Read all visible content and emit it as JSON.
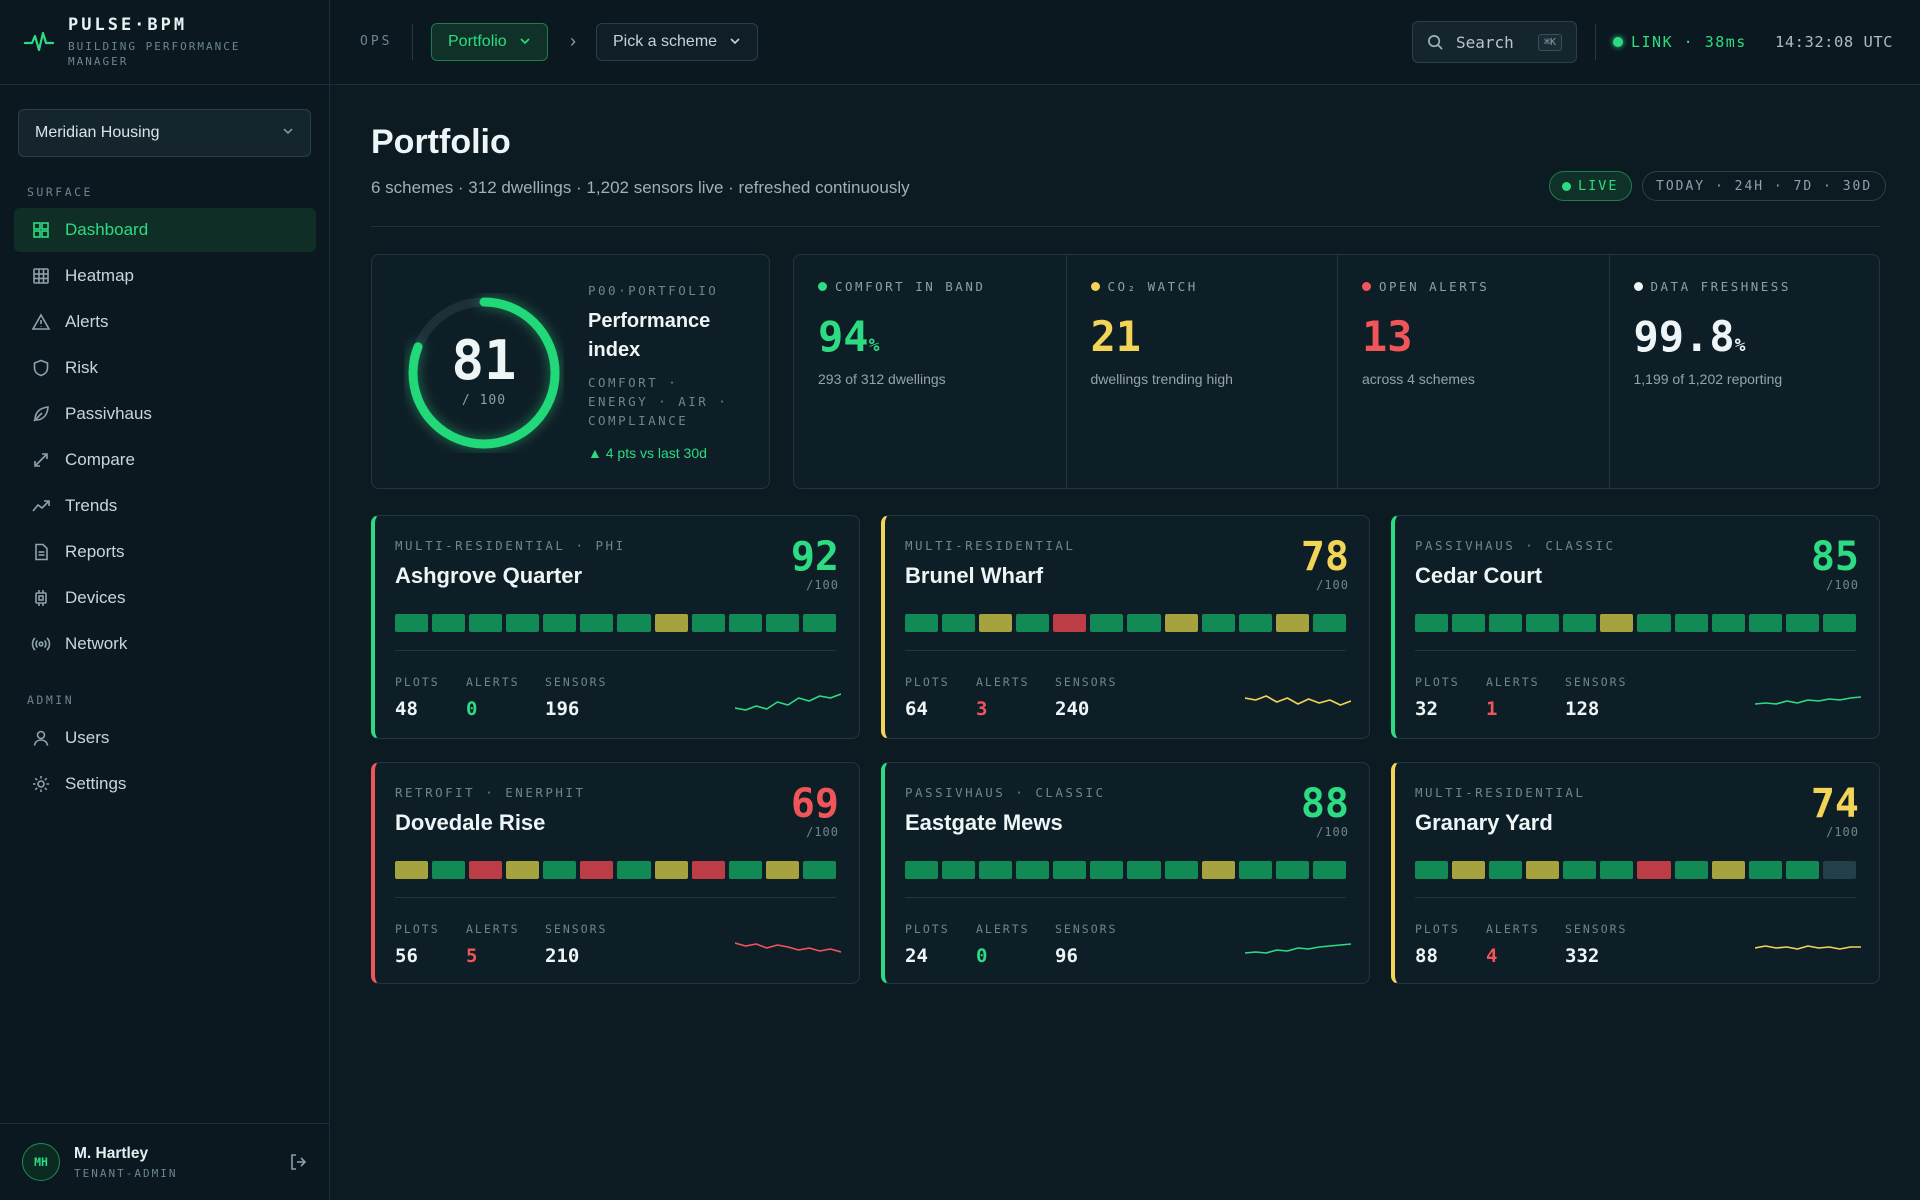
{
  "brand": {
    "name": "PULSE·BPM",
    "subtitle": "BUILDING PERFORMANCE MANAGER",
    "icon": "pulse-icon"
  },
  "tenant": {
    "selected": "Meridian Housing"
  },
  "sidebar": {
    "sections": [
      {
        "label": "SURFACE",
        "items": [
          {
            "label": "Dashboard",
            "icon": "grid-icon",
            "active": true
          },
          {
            "label": "Heatmap",
            "icon": "heatmap-icon"
          },
          {
            "label": "Alerts",
            "icon": "alert-icon"
          },
          {
            "label": "Risk",
            "icon": "shield-icon"
          },
          {
            "label": "Passivhaus",
            "icon": "leaf-icon"
          },
          {
            "label": "Compare",
            "icon": "compare-icon"
          },
          {
            "label": "Trends",
            "icon": "trend-icon"
          },
          {
            "label": "Reports",
            "icon": "report-icon"
          },
          {
            "label": "Devices",
            "icon": "device-icon"
          },
          {
            "label": "Network",
            "icon": "network-icon"
          }
        ]
      },
      {
        "label": "ADMIN",
        "items": [
          {
            "label": "Users",
            "icon": "user-icon"
          },
          {
            "label": "Settings",
            "icon": "gear-icon"
          }
        ]
      }
    ]
  },
  "user": {
    "initials": "MH",
    "name": "M. Hartley",
    "role": "TENANT-ADMIN"
  },
  "topbar": {
    "ops_label": "OPS",
    "portfolio_btn": "Portfolio",
    "scheme_picker": "Pick a scheme",
    "search_label": "Search",
    "search_kbd": "⌘K",
    "link_status": "LINK · 38ms",
    "clock": "14:32:08 UTC"
  },
  "page": {
    "title": "Portfolio",
    "subtitle": "6 schemes · 312 dwellings · 1,202 sensors live · refreshed continuously",
    "live_badge": "LIVE",
    "range": "TODAY · 24H · 7D · 30D"
  },
  "performance": {
    "code": "P00·PORTFOLIO",
    "title": "Performance index",
    "score": "81",
    "score_value": 81,
    "max": "/ 100",
    "description": "COMFORT · ENERGY · AIR · COMPLIANCE",
    "delta": "▲ 4 pts vs last 30d"
  },
  "kpis": [
    {
      "label": "COMFORT IN BAND",
      "value": "94",
      "unit": "%",
      "sub": "293 of 312 dwellings",
      "color": "#2ddc82"
    },
    {
      "label": "CO₂ WATCH",
      "value": "21",
      "unit": "",
      "sub": "dwellings trending high",
      "color": "#f2d457"
    },
    {
      "label": "OPEN ALERTS",
      "value": "13",
      "unit": "",
      "sub": "across 4 schemes",
      "color": "#f0555a"
    },
    {
      "label": "DATA FRESHNESS",
      "value": "99.8",
      "unit": "%",
      "sub": "1,199 of 1,202 reporting",
      "color": "#eef5f6"
    }
  ],
  "stat_labels": {
    "plots": "PLOTS",
    "alerts": "ALERTS",
    "sensors": "SENSORS"
  },
  "schemes": [
    {
      "type": "MULTI-RESIDENTIAL · PHI",
      "name": "Ashgrove Quarter",
      "score": "92",
      "max": "/100",
      "status": "good",
      "plots": "48",
      "alerts": "0",
      "sensors": "196",
      "cells": [
        "g",
        "g",
        "g",
        "g",
        "g",
        "g",
        "g",
        "y",
        "g",
        "g",
        "g",
        "g"
      ],
      "spark": [
        20,
        22,
        18,
        21,
        14,
        17,
        10,
        13,
        8,
        10,
        6
      ]
    },
    {
      "type": "MULTI-RESIDENTIAL",
      "name": "Brunel Wharf",
      "score": "78",
      "max": "/100",
      "status": "warn",
      "plots": "64",
      "alerts": "3",
      "sensors": "240",
      "cells": [
        "g",
        "g",
        "y",
        "g",
        "r",
        "g",
        "g",
        "y",
        "g",
        "g",
        "y",
        "g"
      ],
      "spark": [
        10,
        12,
        8,
        14,
        10,
        16,
        11,
        15,
        12,
        17,
        13
      ]
    },
    {
      "type": "PASSIVHAUS · CLASSIC",
      "name": "Cedar Court",
      "score": "85",
      "max": "/100",
      "status": "good",
      "plots": "32",
      "alerts": "1",
      "sensors": "128",
      "cells": [
        "g",
        "g",
        "g",
        "g",
        "g",
        "y",
        "g",
        "g",
        "g",
        "g",
        "g",
        "g"
      ],
      "spark": [
        16,
        15,
        16,
        13,
        15,
        12,
        13,
        11,
        12,
        10,
        9
      ]
    },
    {
      "type": "RETROFIT · ENERPHIT",
      "name": "Dovedale Rise",
      "score": "69",
      "max": "/100",
      "status": "bad",
      "plots": "56",
      "alerts": "5",
      "sensors": "210",
      "cells": [
        "y",
        "g",
        "r",
        "y",
        "g",
        "r",
        "g",
        "y",
        "r",
        "g",
        "y",
        "g"
      ],
      "spark": [
        8,
        11,
        9,
        13,
        10,
        12,
        15,
        13,
        16,
        14,
        17
      ]
    },
    {
      "type": "PASSIVHAUS · CLASSIC",
      "name": "Eastgate Mews",
      "score": "88",
      "max": "/100",
      "status": "good",
      "plots": "24",
      "alerts": "0",
      "sensors": "96",
      "cells": [
        "g",
        "g",
        "g",
        "g",
        "g",
        "g",
        "g",
        "g",
        "y",
        "g",
        "g",
        "g"
      ],
      "spark": [
        18,
        17,
        18,
        15,
        16,
        13,
        14,
        12,
        11,
        10,
        9
      ]
    },
    {
      "type": "MULTI-RESIDENTIAL",
      "name": "Granary Yard",
      "score": "74",
      "max": "/100",
      "status": "warn",
      "plots": "88",
      "alerts": "4",
      "sensors": "332",
      "cells": [
        "g",
        "y",
        "g",
        "y",
        "g",
        "g",
        "r",
        "g",
        "y",
        "g",
        "g",
        "x"
      ],
      "spark": [
        13,
        11,
        13,
        12,
        14,
        11,
        13,
        12,
        14,
        12,
        12
      ]
    }
  ],
  "colors": {
    "good": "#2ddc82",
    "warn": "#f2d457",
    "bad": "#f0555a",
    "cell_g": "#128a55",
    "cell_y": "#a6a33f",
    "cell_r": "#bc3d46",
    "cell_x": "#23404a",
    "spark_good": "#2ddc82",
    "spark_warn": "#f2d457",
    "spark_bad": "#f0555a"
  }
}
